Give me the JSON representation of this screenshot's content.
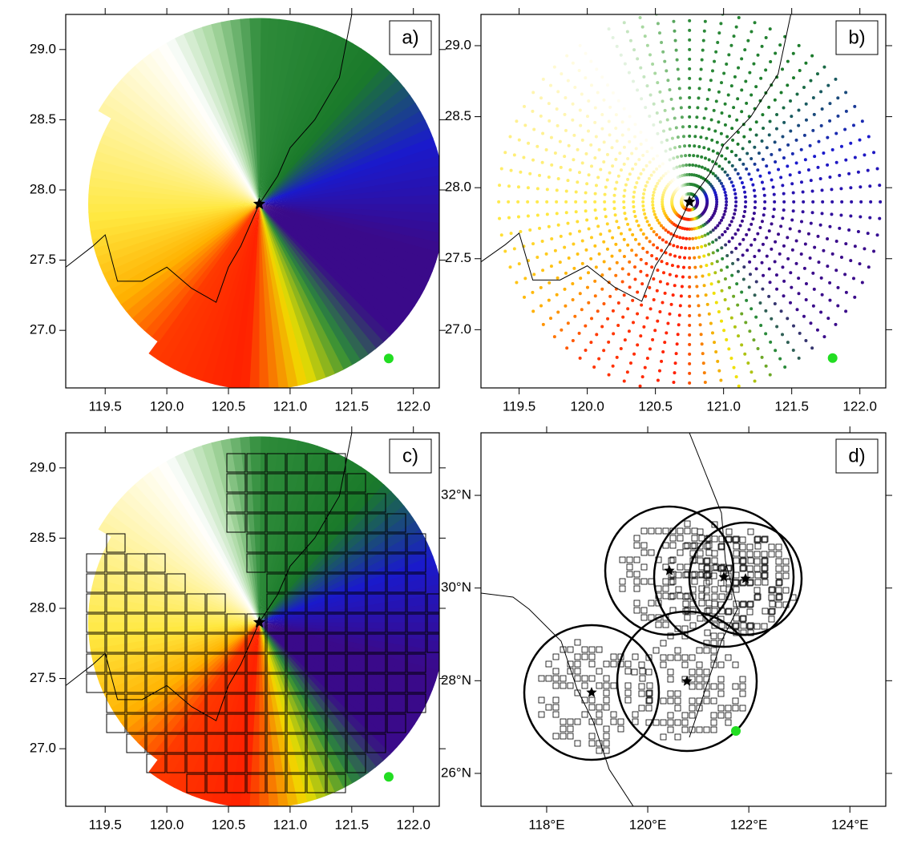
{
  "panels": [
    {
      "label": "a)",
      "xlim": [
        119.18,
        122.21
      ],
      "ylim": [
        26.59,
        29.25
      ],
      "xticks": [
        119.5,
        {
          "value": 120,
          "label": "120.0"
        },
        120.5,
        {
          "value": 121,
          "label": "121.0"
        },
        121.5,
        {
          "value": 122,
          "label": "122.0"
        }
      ],
      "yticks": [
        {
          "value": 27,
          "label": "27.0"
        },
        27.5,
        {
          "value": 28,
          "label": "28.0"
        },
        28.5,
        {
          "value": 29,
          "label": "29.0"
        }
      ]
    },
    {
      "label": "b)",
      "xlim": [
        119.22,
        122.19
      ],
      "ylim": [
        26.59,
        29.22
      ],
      "xticks": [
        119.5,
        {
          "value": 120,
          "label": "120.0"
        },
        120.5,
        {
          "value": 121,
          "label": "121.0"
        },
        121.5,
        {
          "value": 122,
          "label": "122.0"
        }
      ],
      "yticks": [
        {
          "value": 27,
          "label": "27.0"
        },
        27.5,
        {
          "value": 28,
          "label": "28.0"
        },
        28.5,
        {
          "value": 29,
          "label": "29.0"
        }
      ]
    },
    {
      "label": "c)",
      "xlim": [
        119.18,
        122.21
      ],
      "ylim": [
        26.59,
        29.25
      ],
      "xticks": [
        119.5,
        {
          "value": 120,
          "label": "120.0"
        },
        120.5,
        {
          "value": 121,
          "label": "121.0"
        },
        121.5,
        {
          "value": 122,
          "label": "122.0"
        }
      ],
      "yticks": [
        {
          "value": 27,
          "label": "27.0"
        },
        27.5,
        {
          "value": 28,
          "label": "28.0"
        },
        28.5,
        {
          "value": 29,
          "label": "29.0"
        }
      ]
    },
    {
      "label": "d)",
      "xlim": [
        116.7,
        124.71
      ],
      "ylim": [
        25.29,
        33.35
      ],
      "xticks": [
        {
          "value": 118,
          "label": "118°E"
        },
        {
          "value": 120,
          "label": "120°E"
        },
        {
          "value": 122,
          "label": "122°E"
        },
        {
          "value": 124,
          "label": "124°E"
        }
      ],
      "yticks": [
        {
          "value": 26,
          "label": "26°N"
        },
        {
          "value": 28,
          "label": "28°N"
        },
        {
          "value": 30,
          "label": "30°N"
        },
        {
          "value": 32,
          "label": "32°N"
        }
      ]
    }
  ]
}
